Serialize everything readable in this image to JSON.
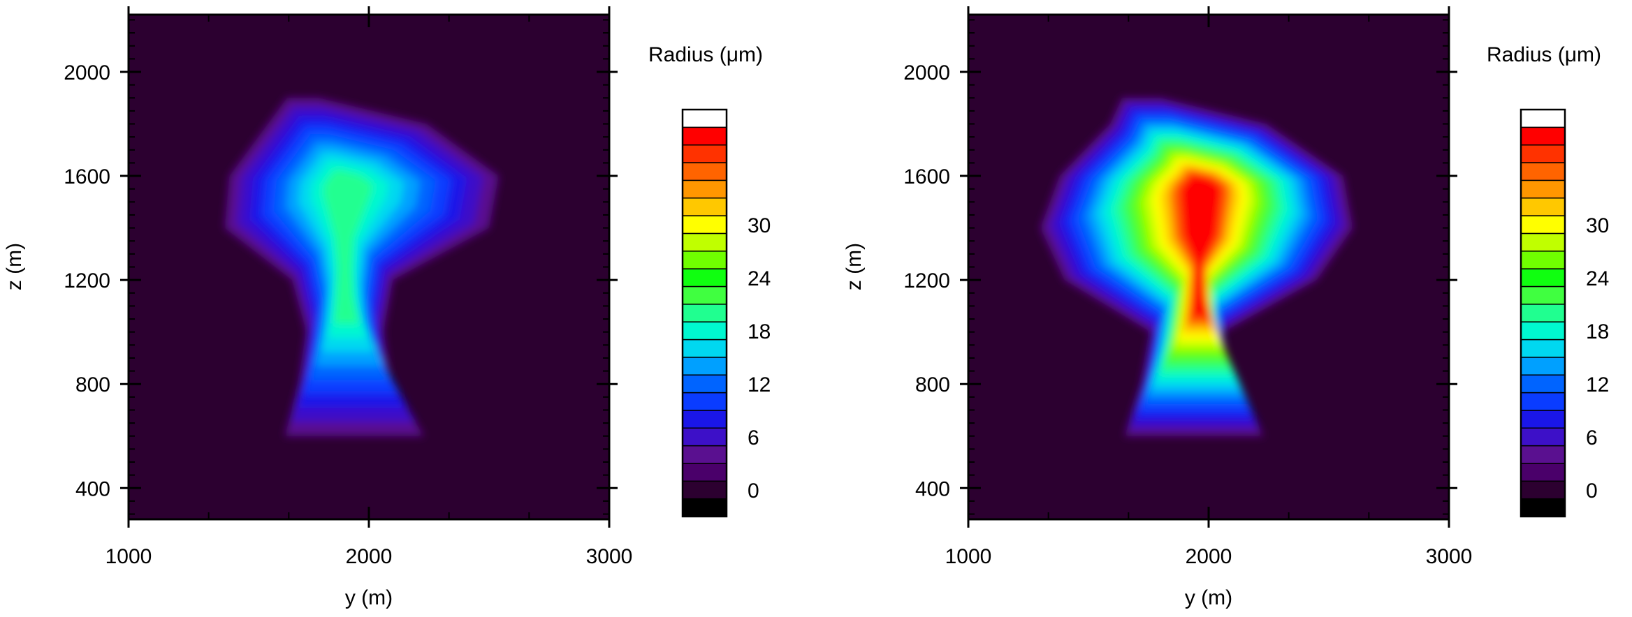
{
  "chart_data": [
    {
      "type": "heatmap",
      "id": "left",
      "xlabel": "y (m)",
      "ylabel": "z (m)",
      "xlim": [
        1000,
        3000
      ],
      "ylim": [
        280,
        2220
      ],
      "x_ticks": [
        1000,
        2000,
        3000
      ],
      "x_tick_labels": [
        "1000",
        "2000",
        "3000"
      ],
      "y_ticks": [
        400,
        800,
        1200,
        1600,
        2000
      ],
      "y_tick_labels": [
        "400",
        "800",
        "1200",
        "1600",
        "2000"
      ],
      "colorbar": {
        "title": "Radius (μm)",
        "tick_values": [
          0,
          6,
          12,
          18,
          24,
          30
        ],
        "tick_labels": [
          "0",
          "6",
          "12",
          "18",
          "24",
          "30"
        ]
      },
      "cloud_shape": [
        {
          "z": 600,
          "y_min": 1650,
          "y_max": 2230
        },
        {
          "z": 800,
          "y_min": 1710,
          "y_max": 2090
        },
        {
          "z": 1000,
          "y_min": 1740,
          "y_max": 2060
        },
        {
          "z": 1200,
          "y_min": 1680,
          "y_max": 2100
        },
        {
          "z": 1400,
          "y_min": 1400,
          "y_max": 2500
        },
        {
          "z": 1600,
          "y_min": 1420,
          "y_max": 2540
        },
        {
          "z": 1800,
          "y_min": 1580,
          "y_max": 2240
        },
        {
          "z": 1900,
          "y_min": 1660,
          "y_max": 1790
        }
      ],
      "max_radius_um": 17
    },
    {
      "type": "heatmap",
      "id": "right",
      "xlabel": "y (m)",
      "ylabel": "z (m)",
      "xlim": [
        1000,
        3000
      ],
      "ylim": [
        280,
        2220
      ],
      "x_ticks": [
        1000,
        2000,
        3000
      ],
      "x_tick_labels": [
        "1000",
        "2000",
        "3000"
      ],
      "y_ticks": [
        400,
        800,
        1200,
        1600,
        2000
      ],
      "y_tick_labels": [
        "400",
        "800",
        "1200",
        "1600",
        "2000"
      ],
      "colorbar": {
        "title": "Radius (μm)",
        "tick_values": [
          0,
          6,
          12,
          18,
          24,
          30
        ],
        "tick_labels": [
          "0",
          "6",
          "12",
          "18",
          "24",
          "30"
        ]
      },
      "cloud_shape": [
        {
          "z": 600,
          "y_min": 1650,
          "y_max": 2230
        },
        {
          "z": 800,
          "y_min": 1720,
          "y_max": 2080
        },
        {
          "z": 1000,
          "y_min": 1760,
          "y_max": 2060
        },
        {
          "z": 1200,
          "y_min": 1400,
          "y_max": 2450
        },
        {
          "z": 1400,
          "y_min": 1300,
          "y_max": 2600
        },
        {
          "z": 1600,
          "y_min": 1380,
          "y_max": 2560
        },
        {
          "z": 1800,
          "y_min": 1590,
          "y_max": 2240
        },
        {
          "z": 1900,
          "y_min": 1640,
          "y_max": 1800
        }
      ],
      "max_radius_um": 30
    }
  ],
  "colorbar_colors": [
    "#000000",
    "#2c0030",
    "#4a006a",
    "#5a1090",
    "#3d10c8",
    "#1a16e8",
    "#0a3cff",
    "#0064ff",
    "#00a0ff",
    "#00d8f0",
    "#00f8d0",
    "#20ff90",
    "#40ff40",
    "#10ff10",
    "#70ff00",
    "#c0ff00",
    "#ffff00",
    "#ffc800",
    "#ff9600",
    "#ff6400",
    "#ff3200",
    "#ff0000",
    "#ffffff"
  ],
  "background_color": "#2c0030"
}
